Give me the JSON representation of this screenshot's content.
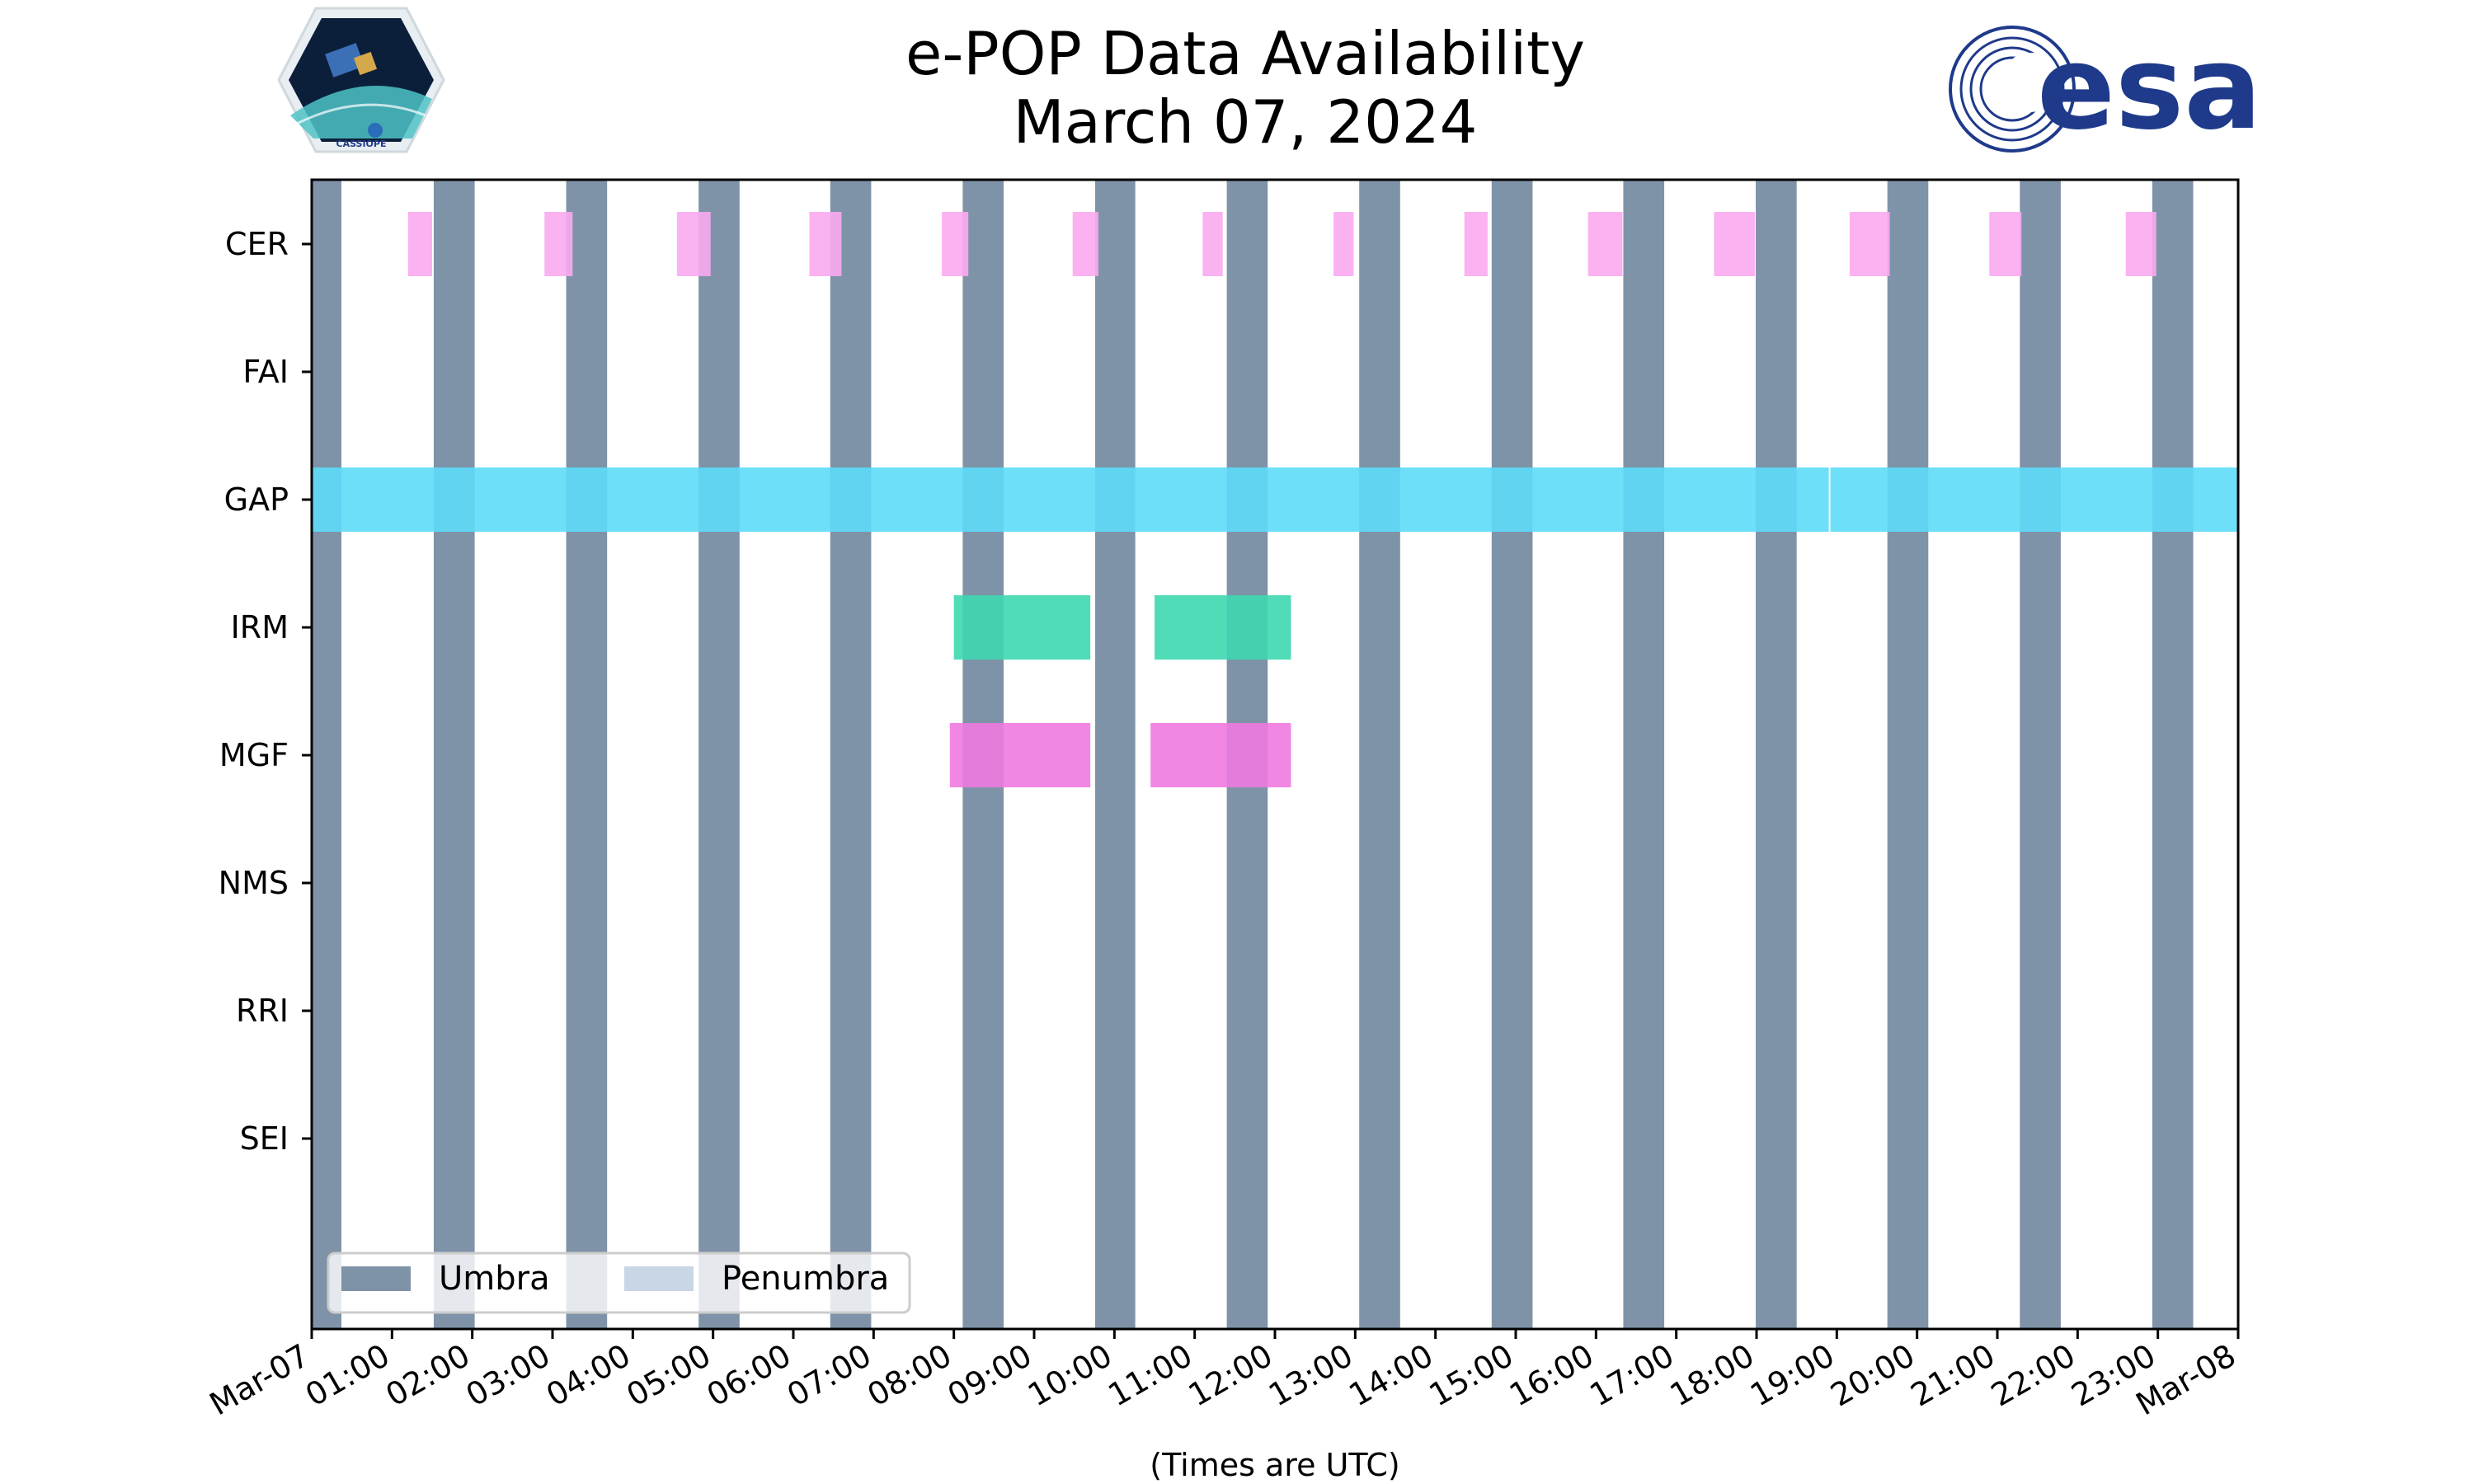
{
  "header": {
    "title_line1": "e-POP Data Availability",
    "title_line2": "March 07, 2024",
    "left_logo_text": "CASSIOPE",
    "right_logo_text": "esa"
  },
  "colors": {
    "umbra": "#7f93a8",
    "penumbra": "#c9d6e6",
    "CER": "#fbaaf0",
    "GAP": "#5edcf8",
    "IRM": "#3ed8b0",
    "MGF": "#f07ae0",
    "esa_blue": "#1f3a8a"
  },
  "chart_data": {
    "type": "timeline",
    "title": "e-POP Data Availability March 07, 2024",
    "xlabel": "(Times are UTC)",
    "xlim_hours": [
      0,
      24
    ],
    "x_tick_labels": [
      "Mar-07",
      "01:00",
      "02:00",
      "03:00",
      "04:00",
      "05:00",
      "06:00",
      "07:00",
      "08:00",
      "09:00",
      "10:00",
      "11:00",
      "12:00",
      "13:00",
      "14:00",
      "15:00",
      "16:00",
      "17:00",
      "18:00",
      "19:00",
      "20:00",
      "21:00",
      "22:00",
      "23:00",
      "Mar-08"
    ],
    "instruments": [
      "CER",
      "FAI",
      "GAP",
      "IRM",
      "MGF",
      "NMS",
      "RRI",
      "SEI"
    ],
    "umbra_intervals": [
      [
        0.0,
        0.37
      ],
      [
        1.52,
        2.03
      ],
      [
        3.17,
        3.68
      ],
      [
        4.82,
        5.33
      ],
      [
        6.46,
        6.97
      ],
      [
        8.11,
        8.62
      ],
      [
        9.76,
        10.26
      ],
      [
        11.4,
        11.91
      ],
      [
        13.05,
        13.56
      ],
      [
        14.7,
        15.21
      ],
      [
        16.34,
        16.85
      ],
      [
        17.99,
        18.5
      ],
      [
        19.63,
        20.14
      ],
      [
        21.28,
        21.79
      ],
      [
        22.93,
        23.44
      ]
    ],
    "penumbra_intervals": [],
    "series": [
      {
        "name": "CER",
        "intervals": [
          [
            1.2,
            1.5
          ],
          [
            2.9,
            3.25
          ],
          [
            4.55,
            4.97
          ],
          [
            6.2,
            6.6
          ],
          [
            7.85,
            8.18
          ],
          [
            9.48,
            9.8
          ],
          [
            11.1,
            11.35
          ],
          [
            12.73,
            12.98
          ],
          [
            14.36,
            14.65
          ],
          [
            15.9,
            16.33
          ],
          [
            17.47,
            17.98
          ],
          [
            19.16,
            19.66
          ],
          [
            20.9,
            21.3
          ],
          [
            22.6,
            22.98
          ]
        ]
      },
      {
        "name": "FAI",
        "intervals": []
      },
      {
        "name": "GAP",
        "intervals": [
          [
            0.0,
            18.9
          ],
          [
            18.92,
            24.0
          ]
        ]
      },
      {
        "name": "IRM",
        "intervals": [
          [
            8.0,
            9.7
          ],
          [
            10.5,
            12.2
          ]
        ]
      },
      {
        "name": "MGF",
        "intervals": [
          [
            7.95,
            9.7
          ],
          [
            10.45,
            12.2
          ]
        ]
      },
      {
        "name": "NMS",
        "intervals": []
      },
      {
        "name": "RRI",
        "intervals": []
      },
      {
        "name": "SEI",
        "intervals": []
      }
    ],
    "legend": {
      "position": "bottom-left",
      "entries": [
        "Umbra",
        "Penumbra"
      ]
    }
  }
}
